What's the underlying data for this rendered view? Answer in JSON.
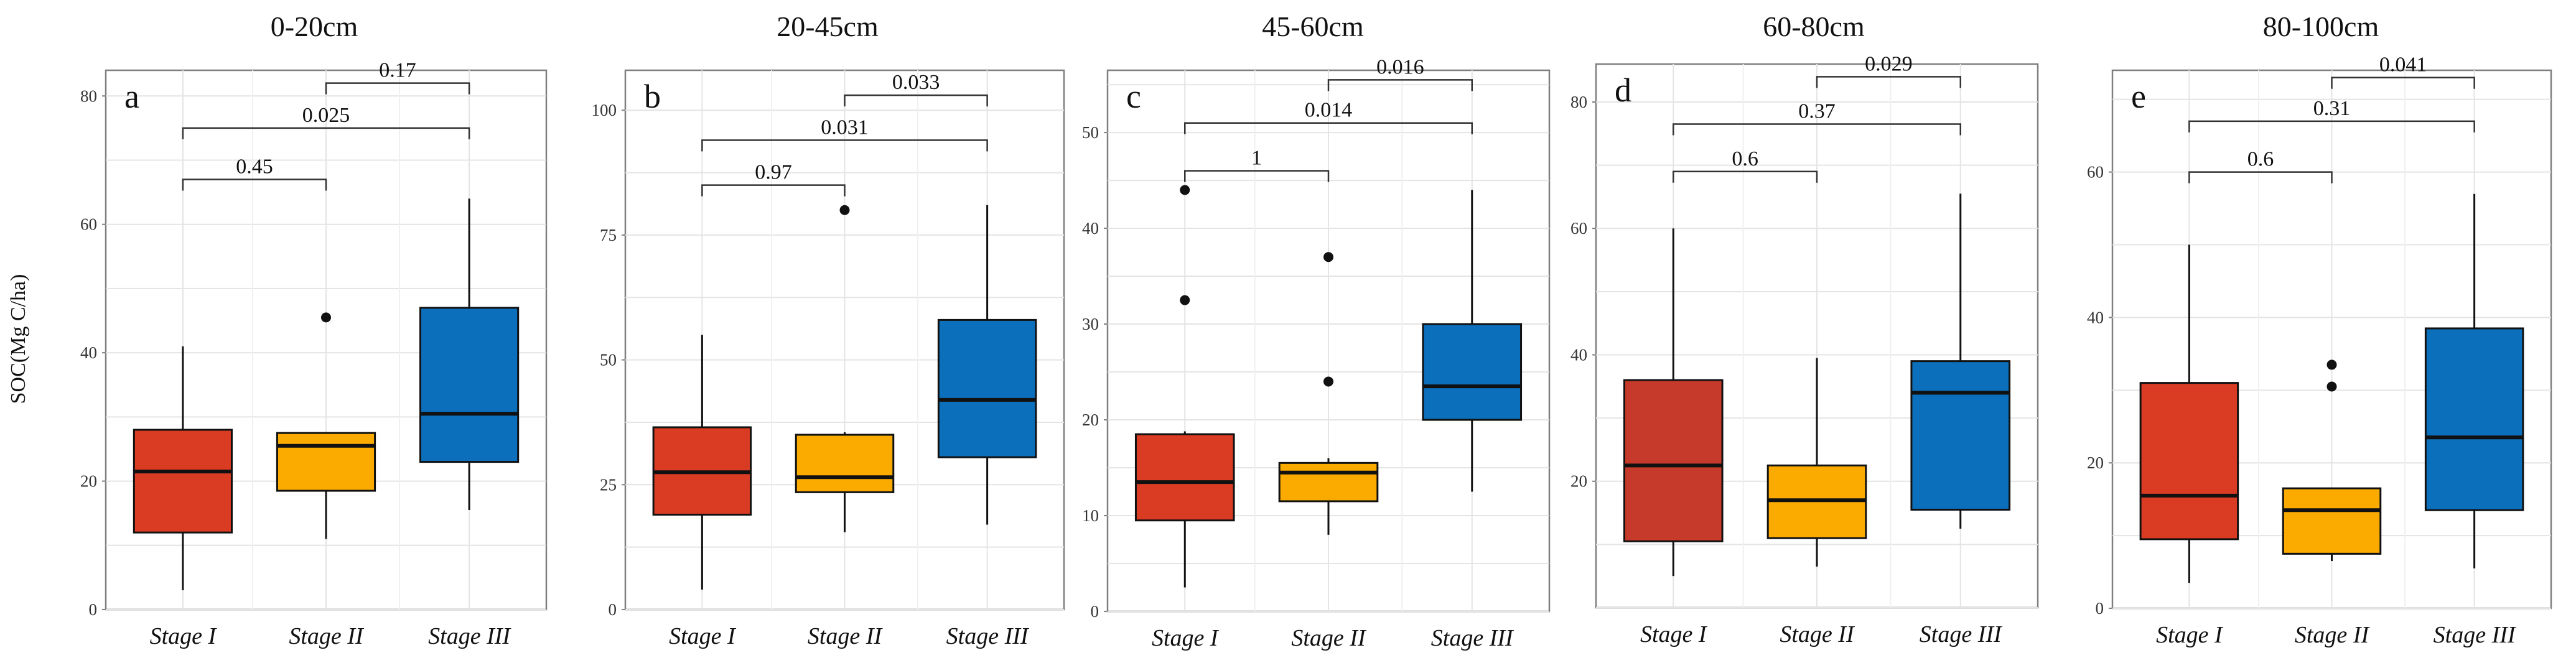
{
  "y_axis_label": "SOC(Mg C/ha)",
  "colors": {
    "stage_i": "#d93b23",
    "stage_ii": "#fbab00",
    "stage_iii": "#0b6fbc",
    "stage_i_dark": "#c53a2a",
    "grid": "#e4e4e4",
    "frame": "#7f7f7f",
    "ink": "#111111"
  },
  "chart_data": [
    {
      "type": "boxplot",
      "title": "0-20cm",
      "panel_letter": "a",
      "ylabel": "SOC(Mg C/ha)",
      "categories": [
        "Stage I",
        "Stage II",
        "Stage III"
      ],
      "ylim": [
        0,
        84
      ],
      "yticks": [
        0,
        20,
        40,
        60,
        80
      ],
      "grid": true,
      "boxes": [
        {
          "name": "Stage I",
          "color": "stage_i",
          "min": 3,
          "q1": 12,
          "median": 21.5,
          "q3": 28,
          "max": 41,
          "outliers": []
        },
        {
          "name": "Stage II",
          "color": "stage_ii",
          "min": 11,
          "q1": 18.5,
          "median": 25.5,
          "q3": 27.5,
          "max": 27.5,
          "outliers": [
            45.5
          ]
        },
        {
          "name": "Stage III",
          "color": "stage_iii",
          "min": 15.5,
          "q1": 23,
          "median": 30.5,
          "q3": 47,
          "max": 64,
          "outliers": []
        }
      ],
      "comparisons": [
        {
          "from": 0,
          "to": 1,
          "y": 67,
          "label": "0.45"
        },
        {
          "from": 0,
          "to": 2,
          "y": 75,
          "label": "0.025"
        },
        {
          "from": 1,
          "to": 2,
          "y": 82,
          "label": "0.17"
        }
      ]
    },
    {
      "type": "boxplot",
      "title": "20-45cm",
      "panel_letter": "b",
      "ylabel": "",
      "categories": [
        "Stage I",
        "Stage II",
        "Stage III"
      ],
      "ylim": [
        0,
        108
      ],
      "yticks": [
        0,
        25,
        50,
        75,
        100
      ],
      "grid": true,
      "boxes": [
        {
          "name": "Stage I",
          "color": "stage_i",
          "min": 4,
          "q1": 19,
          "median": 27.5,
          "q3": 36.5,
          "max": 55,
          "outliers": []
        },
        {
          "name": "Stage II",
          "color": "stage_ii",
          "min": 15.5,
          "q1": 23.5,
          "median": 26.5,
          "q3": 35,
          "max": 35.5,
          "outliers": [
            80
          ]
        },
        {
          "name": "Stage III",
          "color": "stage_iii",
          "min": 17,
          "q1": 30.5,
          "median": 42,
          "q3": 58,
          "max": 81,
          "outliers": []
        }
      ],
      "comparisons": [
        {
          "from": 0,
          "to": 1,
          "y": 85,
          "label": "0.97"
        },
        {
          "from": 0,
          "to": 2,
          "y": 94,
          "label": "0.031"
        },
        {
          "from": 1,
          "to": 2,
          "y": 103,
          "label": "0.033"
        }
      ]
    },
    {
      "type": "boxplot",
      "title": "45-60cm",
      "panel_letter": "c",
      "ylabel": "",
      "categories": [
        "Stage I",
        "Stage II",
        "Stage III"
      ],
      "ylim": [
        0,
        56.5
      ],
      "yticks": [
        0,
        10,
        20,
        30,
        40,
        50
      ],
      "grid": true,
      "boxes": [
        {
          "name": "Stage I",
          "color": "stage_i",
          "min": 2.5,
          "q1": 9.5,
          "median": 13.5,
          "q3": 18.5,
          "max": 18.8,
          "outliers": [
            32.5,
            44
          ]
        },
        {
          "name": "Stage II",
          "color": "stage_ii",
          "min": 8,
          "q1": 11.5,
          "median": 14.5,
          "q3": 15.5,
          "max": 16,
          "outliers": [
            24,
            37
          ]
        },
        {
          "name": "Stage III",
          "color": "stage_iii",
          "min": 12.5,
          "q1": 20,
          "median": 23.5,
          "q3": 30,
          "max": 44,
          "outliers": []
        }
      ],
      "comparisons": [
        {
          "from": 0,
          "to": 1,
          "y": 46,
          "label": "1"
        },
        {
          "from": 0,
          "to": 2,
          "y": 51,
          "label": "0.014"
        },
        {
          "from": 1,
          "to": 2,
          "y": 55.5,
          "label": "0.016"
        }
      ]
    },
    {
      "type": "boxplot",
      "title": "60-80cm",
      "panel_letter": "d",
      "ylabel": "",
      "categories": [
        "Stage I",
        "Stage II",
        "Stage III"
      ],
      "ylim": [
        0,
        86
      ],
      "yticks": [
        20,
        40,
        60,
        80
      ],
      "grid": true,
      "boxes": [
        {
          "name": "Stage I",
          "color": "stage_i_dark",
          "min": 5,
          "q1": 10.5,
          "median": 22.5,
          "q3": 36,
          "max": 60,
          "outliers": []
        },
        {
          "name": "Stage II",
          "color": "stage_ii",
          "min": 6.5,
          "q1": 11,
          "median": 17,
          "q3": 22.5,
          "max": 39.5,
          "outliers": []
        },
        {
          "name": "Stage III",
          "color": "stage_iii",
          "min": 12.5,
          "q1": 15.5,
          "median": 34,
          "q3": 39,
          "max": 65.5,
          "outliers": []
        }
      ],
      "comparisons": [
        {
          "from": 0,
          "to": 1,
          "y": 69,
          "label": "0.6"
        },
        {
          "from": 0,
          "to": 2,
          "y": 76.5,
          "label": "0.37"
        },
        {
          "from": 1,
          "to": 2,
          "y": 84,
          "label": "0.029"
        }
      ]
    },
    {
      "type": "boxplot",
      "title": "80-100cm",
      "panel_letter": "e",
      "ylabel": "",
      "categories": [
        "Stage I",
        "Stage II",
        "Stage III"
      ],
      "ylim": [
        0,
        74
      ],
      "yticks": [
        0,
        20,
        40,
        60
      ],
      "grid": true,
      "boxes": [
        {
          "name": "Stage I",
          "color": "stage_i",
          "min": 3.5,
          "q1": 9.5,
          "median": 15.5,
          "q3": 31,
          "max": 50,
          "outliers": []
        },
        {
          "name": "Stage II",
          "color": "stage_ii",
          "min": 6.5,
          "q1": 7.5,
          "median": 13.5,
          "q3": 16.5,
          "max": 16.5,
          "outliers": [
            30.5,
            33.5
          ]
        },
        {
          "name": "Stage III",
          "color": "stage_iii",
          "min": 5.5,
          "q1": 13.5,
          "median": 23.5,
          "q3": 38.5,
          "max": 57,
          "outliers": []
        }
      ],
      "comparisons": [
        {
          "from": 0,
          "to": 1,
          "y": 60,
          "label": "0.6"
        },
        {
          "from": 0,
          "to": 2,
          "y": 67,
          "label": "0.31"
        },
        {
          "from": 1,
          "to": 2,
          "y": 73,
          "label": "0.041"
        }
      ]
    }
  ]
}
